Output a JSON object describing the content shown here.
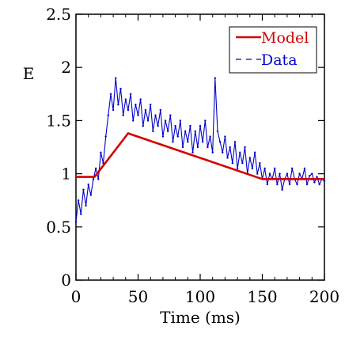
{
  "chart_data": {
    "type": "line",
    "title": "",
    "xlabel": "Time (ms)",
    "ylabel": "E",
    "xlim": [
      0,
      200
    ],
    "ylim": [
      0,
      2.5
    ],
    "xticks": [
      0,
      50,
      100,
      150,
      200
    ],
    "yticks": [
      0,
      0.5,
      1,
      1.5,
      2,
      2.5
    ],
    "xtick_labels": [
      "0",
      "50",
      "100",
      "150",
      "200"
    ],
    "ytick_labels": [
      "0",
      "0.5",
      "1",
      "1.5",
      "2",
      "2.5"
    ],
    "grid": false,
    "legend_position": "top-right",
    "series": [
      {
        "name": "Model",
        "style": "solid",
        "color": "#d40000",
        "x": [
          0,
          15,
          42,
          150,
          200
        ],
        "y": [
          0.97,
          0.97,
          1.38,
          0.95,
          0.95
        ]
      },
      {
        "name": "Data",
        "style": "dashed",
        "color": "#0000cc",
        "x": [
          0,
          2,
          4,
          6,
          8,
          10,
          12,
          14,
          16,
          18,
          20,
          22,
          24,
          26,
          28,
          30,
          32,
          34,
          36,
          38,
          40,
          42,
          44,
          46,
          48,
          50,
          52,
          54,
          56,
          58,
          60,
          62,
          64,
          66,
          68,
          70,
          72,
          74,
          76,
          78,
          80,
          82,
          84,
          86,
          88,
          90,
          92,
          94,
          96,
          98,
          100,
          102,
          104,
          106,
          108,
          110,
          112,
          114,
          116,
          118,
          120,
          122,
          124,
          126,
          128,
          130,
          132,
          134,
          136,
          138,
          140,
          142,
          144,
          146,
          148,
          150,
          152,
          154,
          156,
          158,
          160,
          162,
          164,
          166,
          168,
          170,
          172,
          174,
          176,
          178,
          180,
          182,
          184,
          186,
          188,
          190,
          192,
          194,
          196,
          198,
          200
        ],
        "y": [
          0.55,
          0.75,
          0.62,
          0.85,
          0.7,
          0.9,
          0.8,
          0.95,
          1.05,
          0.95,
          1.2,
          1.1,
          1.35,
          1.55,
          1.75,
          1.6,
          1.9,
          1.65,
          1.8,
          1.55,
          1.7,
          1.6,
          1.75,
          1.5,
          1.65,
          1.55,
          1.7,
          1.45,
          1.6,
          1.5,
          1.65,
          1.4,
          1.55,
          1.45,
          1.6,
          1.35,
          1.5,
          1.4,
          1.55,
          1.3,
          1.45,
          1.35,
          1.5,
          1.25,
          1.4,
          1.3,
          1.45,
          1.2,
          1.4,
          1.25,
          1.45,
          1.3,
          1.5,
          1.25,
          1.35,
          1.2,
          1.9,
          1.4,
          1.3,
          1.2,
          1.35,
          1.15,
          1.25,
          1.1,
          1.3,
          1.05,
          1.2,
          1.1,
          1.25,
          1.0,
          1.15,
          1.05,
          1.2,
          1.0,
          1.1,
          0.95,
          1.05,
          0.9,
          1.0,
          0.95,
          1.05,
          0.9,
          1.0,
          0.85,
          0.95,
          1.0,
          0.9,
          1.05,
          0.95,
          0.9,
          1.0,
          0.95,
          1.05,
          0.9,
          0.98,
          1.0,
          0.92,
          0.97,
          0.9,
          0.95,
          0.93
        ]
      }
    ]
  }
}
